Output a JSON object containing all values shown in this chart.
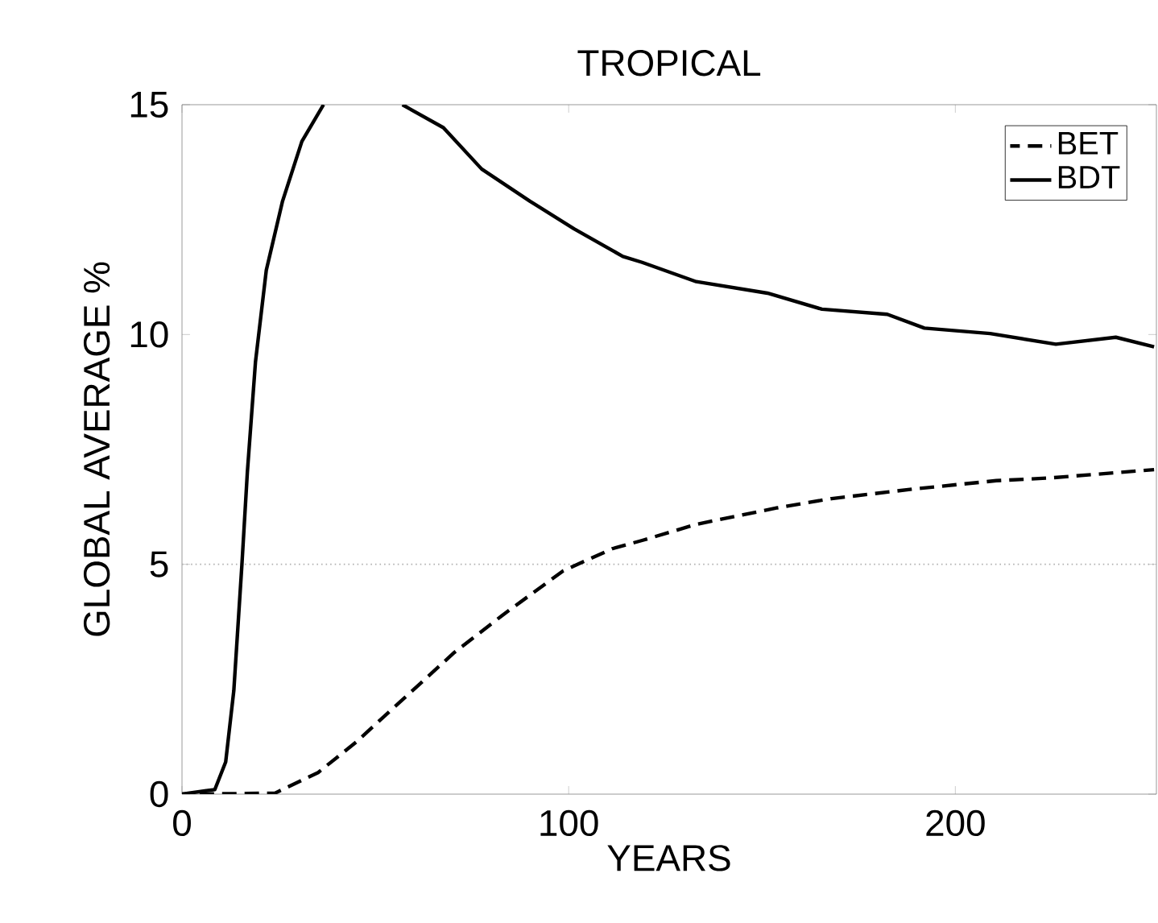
{
  "chart_data": {
    "type": "line",
    "title": "TROPICAL",
    "xlabel": "YEARS",
    "ylabel": "GLOBAL AVERAGE %",
    "xlim": [
      0,
      252
    ],
    "ylim": [
      0,
      15
    ],
    "xticks": [
      0,
      100,
      200
    ],
    "yticks": [
      0,
      5,
      10,
      15
    ],
    "legend": "top right",
    "grid": false,
    "ref_lines": [
      {
        "axis": "y",
        "value": 5,
        "color": "#b0b0b0",
        "line_style": "dotted"
      }
    ],
    "series": [
      {
        "name": "BET",
        "color": "#000000",
        "line_style": "dashed",
        "x": [
          0,
          24,
          35.2,
          45,
          56.3,
          70.4,
          83,
          98.6,
          111.3,
          119,
          133,
          154,
          168,
          189.4,
          210.6,
          224.6,
          251.4
        ],
        "values": [
          0,
          0.02,
          0.47,
          1.13,
          2.0,
          3.08,
          3.9,
          4.86,
          5.34,
          5.52,
          5.87,
          6.23,
          6.43,
          6.64,
          6.82,
          6.88,
          7.06
        ]
      },
      {
        "name": "BDT",
        "color": "#000000",
        "line_style": "solid",
        "x": [
          0,
          8.5,
          11.3,
          13.4,
          15.5,
          16.9,
          19,
          21.8,
          26,
          31,
          36.6,
          47,
          57,
          67.6,
          77.5,
          90,
          101.4,
          114,
          119,
          133,
          151.4,
          165.5,
          182.4,
          192,
          209,
          226,
          241.5,
          251.4
        ],
        "values": [
          0,
          0.1,
          0.7,
          2.25,
          5.0,
          7.0,
          9.4,
          11.4,
          12.9,
          14.2,
          15.0,
          null,
          15.0,
          14.5,
          13.6,
          12.9,
          12.3,
          11.7,
          11.57,
          11.15,
          10.9,
          10.55,
          10.44,
          10.14,
          10.02,
          9.79,
          9.94,
          9.73
        ]
      }
    ]
  }
}
